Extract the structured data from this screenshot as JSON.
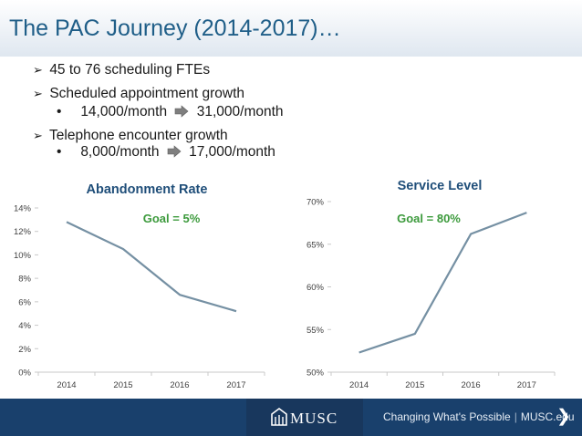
{
  "slide": {
    "title": "The PAC Journey (2014-2017)…",
    "bullets": [
      {
        "text": "45 to 76 scheduling FTEs"
      },
      {
        "text": "Scheduled appointment growth"
      },
      {
        "sub": true,
        "from": "14,000/month",
        "to": "31,000/month"
      },
      {
        "text": "Telephone encounter growth"
      },
      {
        "sub": true,
        "from": "8,000/month",
        "to": "17,000/month"
      }
    ]
  },
  "chart_data": [
    {
      "type": "line",
      "title": "Abandonment Rate",
      "annotation": "Goal = 5%",
      "x": [
        "2014",
        "2015",
        "2016",
        "2017"
      ],
      "series": [
        {
          "values": [
            12.8,
            10.5,
            6.6,
            5.2
          ]
        }
      ],
      "ylim": [
        0,
        14
      ],
      "yticks": [
        0,
        2,
        4,
        6,
        8,
        10,
        12,
        14
      ],
      "ytick_labels": [
        "0%",
        "2%",
        "4%",
        "6%",
        "8%",
        "10%",
        "12%",
        "14%"
      ],
      "grid": false,
      "line_color": "#7590a3",
      "annotation_color": "#3c9a3c"
    },
    {
      "type": "line",
      "title": "Service Level",
      "annotation": "Goal = 80%",
      "x": [
        "2014",
        "2015",
        "2016",
        "2017"
      ],
      "series": [
        {
          "values": [
            52.3,
            54.5,
            66.2,
            68.7
          ]
        }
      ],
      "ylim": [
        50,
        70
      ],
      "yticks": [
        50,
        55,
        60,
        65,
        70
      ],
      "ytick_labels": [
        "50%",
        "55%",
        "60%",
        "65%",
        "70%"
      ],
      "grid": false,
      "line_color": "#7590a3",
      "annotation_color": "#3c9a3c"
    }
  ],
  "footer": {
    "logo": "MUSC",
    "tagline": "Changing What's Possible",
    "separator": "|",
    "site": "MUSC.edu",
    "next": "❯",
    "icon": "chevron-right-icon"
  }
}
